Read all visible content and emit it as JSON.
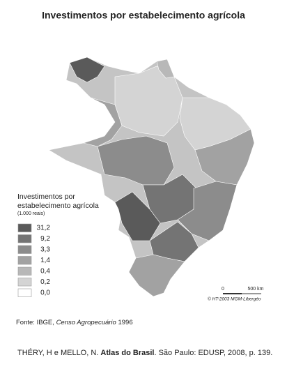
{
  "map": {
    "title": "Investimentos por estabelecimento agrícola",
    "legend": {
      "title_line1": "Investimentos por",
      "title_line2": "estabelecimento agrícola",
      "unit": "(1.000 reais)",
      "classes": [
        {
          "label": "31,2",
          "color": "#5a5a5a"
        },
        {
          "label": "9,2",
          "color": "#747474"
        },
        {
          "label": "3,3",
          "color": "#8c8c8c"
        },
        {
          "label": "1,4",
          "color": "#a2a2a2"
        },
        {
          "label": "0,4",
          "color": "#b8b8b8"
        },
        {
          "label": "0,2",
          "color": "#d4d4d4"
        },
        {
          "label": "0,0",
          "color": "#ffffff"
        }
      ]
    },
    "scale": {
      "start": "0",
      "end": "500 km"
    },
    "credit": "© HT-2003 MGM-Libergéo"
  },
  "source": {
    "prefix": "Fonte: IBGE, ",
    "italic": "Censo Agropecuário",
    "suffix": " 1996"
  },
  "citation": {
    "prefix": "THÉRY, H e MELLO, N. ",
    "bold": "Atlas do Brasil",
    "suffix": ". São Paulo: EDUSP, 2008, p. 139."
  }
}
